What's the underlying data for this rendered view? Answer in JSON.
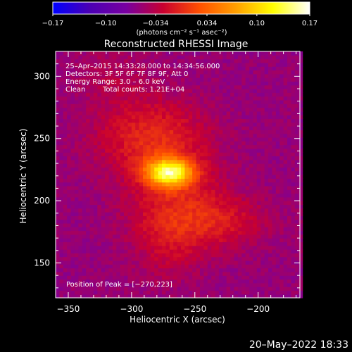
{
  "chart_data": {
    "type": "heatmap",
    "title": "Reconstructed RHESSI Image",
    "xlabel": "Heliocentric X (arcsec)",
    "ylabel": "Heliocentric Y (arcsec)",
    "xlim": [
      -360,
      -167
    ],
    "ylim": [
      122,
      320
    ],
    "xticks": [
      -350,
      -300,
      -250,
      -200
    ],
    "yticks": [
      150,
      200,
      250,
      300
    ],
    "colorbar": {
      "ticks": [
        "−0.17",
        "−0.10",
        "−0.034",
        "0.034",
        "0.10",
        "0.17"
      ],
      "tick_values": [
        -0.17,
        -0.1,
        -0.034,
        0.034,
        0.1,
        0.17
      ],
      "range": [
        -0.17,
        0.17
      ],
      "units": "(photons cm⁻² s⁻¹ asec⁻²)",
      "stops": [
        "#0000ff",
        "#4b00b4",
        "#7800a0",
        "#c80030",
        "#ff5000",
        "#ffa000",
        "#ffff00",
        "#ffffff"
      ]
    },
    "annotations": [
      "25–Apr–2015 14:33:28.000 to 14:34:56.000",
      "Detectors: 3F 5F 6F 7F 8F 9F, Att 0",
      "Energy Range: 3.0 – 6.0 keV",
      "Clean",
      "Total counts: 1.21E+04"
    ],
    "peak_label": "Position of Peak = [−270,223]",
    "peak": [
      -270,
      223
    ],
    "sources": [
      {
        "x": -270,
        "y": 223,
        "amp": 0.17,
        "sx": 13,
        "sy": 8
      },
      {
        "x": -283,
        "y": 250,
        "amp": 0.055,
        "sx": 30,
        "sy": 22
      },
      {
        "x": -262,
        "y": 195,
        "amp": 0.04,
        "sx": 28,
        "sy": 24
      },
      {
        "x": -228,
        "y": 183,
        "amp": 0.032,
        "sx": 26,
        "sy": 14
      },
      {
        "x": -272,
        "y": 165,
        "amp": 0.022,
        "sx": 18,
        "sy": 22
      },
      {
        "x": -315,
        "y": 300,
        "amp": 0.015,
        "sx": 22,
        "sy": 18
      }
    ],
    "background_level": -0.055
  },
  "timestamp": "20–May–2022 18:33"
}
